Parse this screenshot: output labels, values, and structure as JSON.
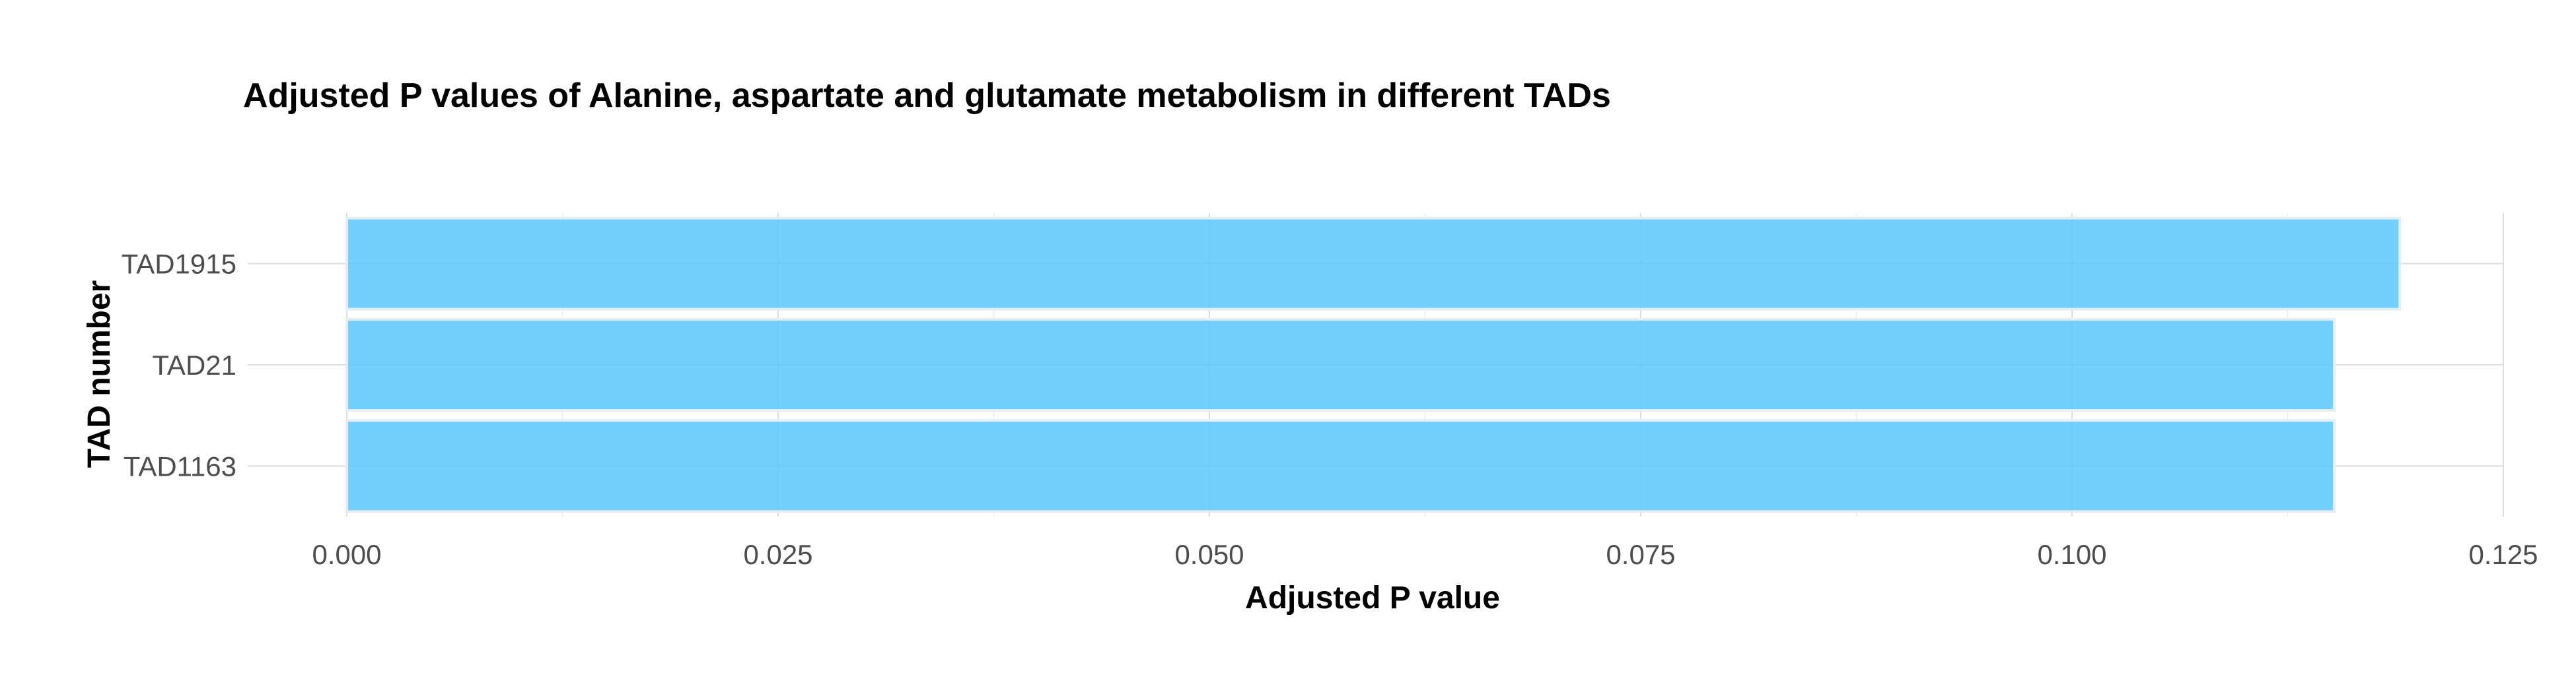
{
  "chart_data": {
    "type": "bar",
    "orientation": "horizontal",
    "title": "Adjusted P values of Alanine, aspartate and glutamate metabolism in different TADs",
    "xlabel": "Adjusted P value",
    "ylabel": "TAD number",
    "categories": [
      "TAD1915",
      "TAD21",
      "TAD1163"
    ],
    "values": [
      0.119,
      0.1152,
      0.1152
    ],
    "xlim": [
      0,
      0.125
    ],
    "xticks": [
      "0.000",
      "0.025",
      "0.050",
      "0.075",
      "0.100",
      "0.125"
    ],
    "xtick_values": [
      0,
      0.025,
      0.05,
      0.075,
      0.1,
      0.125
    ],
    "grid": true,
    "legend": "none",
    "bar_color": "#5bc8fb",
    "bar_edge_color": "#e4eef6"
  }
}
